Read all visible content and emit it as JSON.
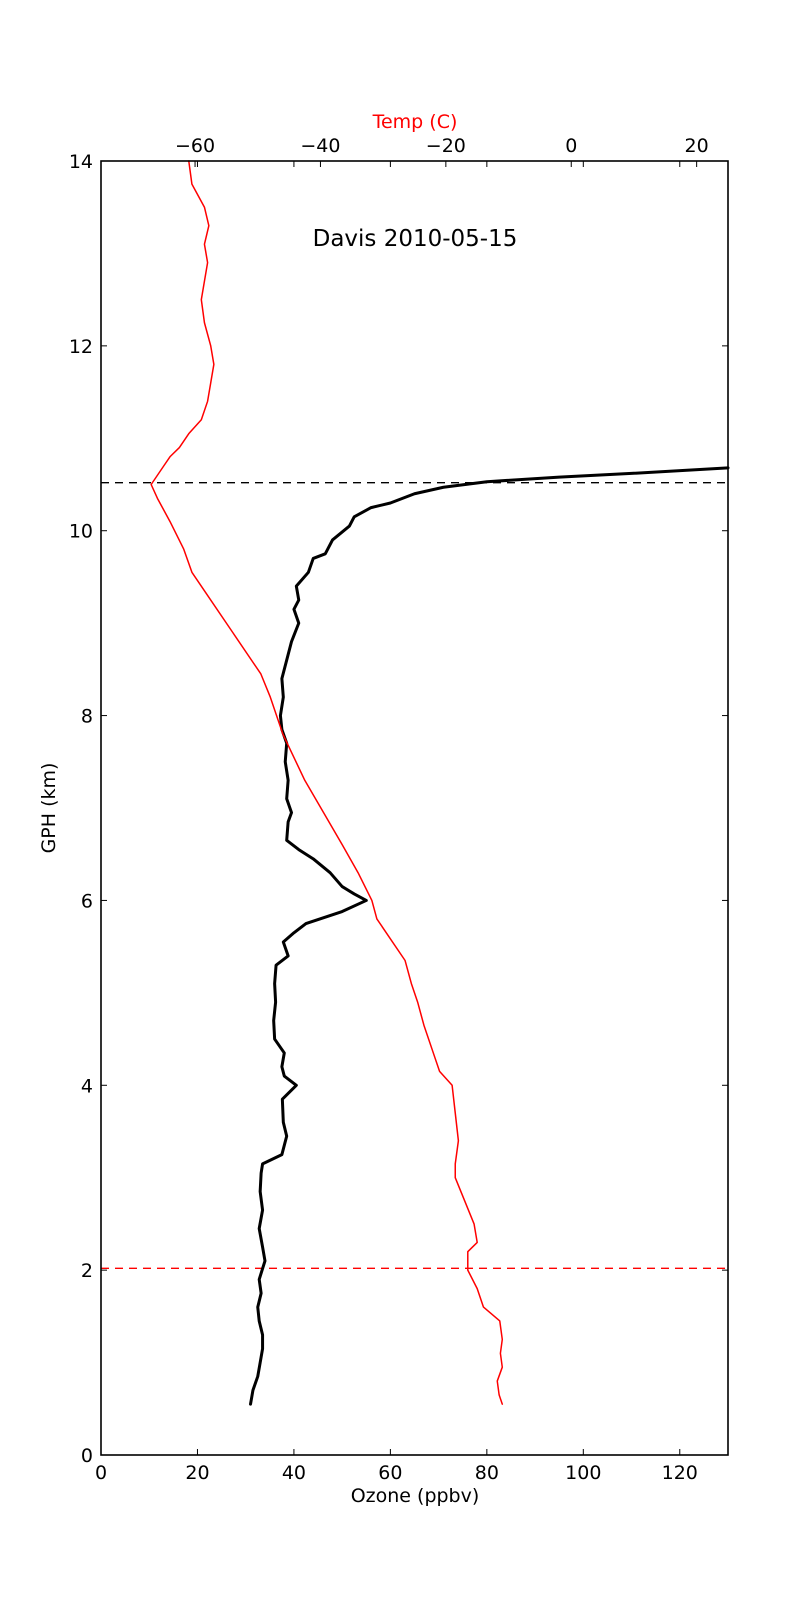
{
  "chart_data": {
    "type": "line",
    "title": "Davis 2010-05-15",
    "xlabel": "Ozone (ppbv)",
    "ylabel": "GPH (km)",
    "x2label": "Temp (C)",
    "xlim": [
      0,
      130
    ],
    "ylim": [
      0,
      14
    ],
    "x2lim": [
      -75,
      25
    ],
    "xticks": [
      "0",
      "20",
      "40",
      "60",
      "80",
      "100",
      "120"
    ],
    "yticks": [
      "0",
      "2",
      "4",
      "6",
      "8",
      "10",
      "12",
      "14"
    ],
    "x2ticks": [
      "−60",
      "−40",
      "−20",
      "0",
      "20"
    ],
    "colors": {
      "ozone": "#000000",
      "temperature": "#ff0000",
      "tropopause": "#000000",
      "boundary_layer": "#ff0000"
    },
    "series": [
      {
        "name": "",
        "axis": "bottom",
        "points": [
          [
            31.0,
            0.55
          ],
          [
            31.5,
            0.7
          ],
          [
            32.5,
            0.85
          ],
          [
            33.0,
            1.0
          ],
          [
            33.5,
            1.15
          ],
          [
            33.5,
            1.3
          ],
          [
            32.8,
            1.45
          ],
          [
            32.5,
            1.6
          ],
          [
            33.2,
            1.75
          ],
          [
            32.8,
            1.9
          ],
          [
            34.0,
            2.1
          ],
          [
            33.5,
            2.25
          ],
          [
            32.8,
            2.45
          ],
          [
            33.5,
            2.65
          ],
          [
            33.0,
            2.85
          ],
          [
            33.2,
            3.05
          ],
          [
            33.5,
            3.15
          ],
          [
            37.5,
            3.25
          ],
          [
            38.5,
            3.45
          ],
          [
            37.8,
            3.6
          ],
          [
            37.6,
            3.85
          ],
          [
            40.5,
            4.0
          ],
          [
            38.0,
            4.1
          ],
          [
            37.5,
            4.2
          ],
          [
            38.0,
            4.35
          ],
          [
            36.0,
            4.5
          ],
          [
            35.8,
            4.7
          ],
          [
            36.2,
            4.9
          ],
          [
            36.0,
            5.1
          ],
          [
            36.3,
            5.3
          ],
          [
            38.8,
            5.4
          ],
          [
            37.8,
            5.55
          ],
          [
            40.0,
            5.65
          ],
          [
            42.5,
            5.75
          ],
          [
            50.0,
            5.88
          ],
          [
            55.0,
            6.0
          ],
          [
            52.5,
            6.07
          ],
          [
            50.0,
            6.15
          ],
          [
            47.5,
            6.3
          ],
          [
            44.0,
            6.45
          ],
          [
            41.0,
            6.55
          ],
          [
            38.5,
            6.65
          ],
          [
            38.8,
            6.85
          ],
          [
            39.5,
            6.95
          ],
          [
            38.5,
            7.1
          ],
          [
            38.8,
            7.3
          ],
          [
            38.2,
            7.5
          ],
          [
            38.5,
            7.7
          ],
          [
            37.5,
            7.85
          ],
          [
            37.2,
            8.0
          ],
          [
            37.8,
            8.2
          ],
          [
            37.5,
            8.4
          ],
          [
            38.5,
            8.6
          ],
          [
            39.5,
            8.8
          ],
          [
            41.0,
            9.0
          ],
          [
            40.0,
            9.15
          ],
          [
            41.0,
            9.25
          ],
          [
            40.5,
            9.4
          ],
          [
            43.0,
            9.55
          ],
          [
            44.0,
            9.7
          ],
          [
            46.5,
            9.75
          ],
          [
            48.0,
            9.9
          ],
          [
            51.5,
            10.05
          ],
          [
            52.5,
            10.15
          ],
          [
            56.0,
            10.25
          ],
          [
            60.0,
            10.3
          ],
          [
            65.0,
            10.4
          ],
          [
            71.0,
            10.47
          ],
          [
            80.0,
            10.53
          ],
          [
            95.0,
            10.58
          ],
          [
            110.0,
            10.62
          ],
          [
            130.0,
            10.68
          ]
        ]
      },
      {
        "name": "",
        "axis": "top",
        "points": [
          [
            -11.0,
            0.55
          ],
          [
            -11.5,
            0.65
          ],
          [
            -11.8,
            0.8
          ],
          [
            -11.0,
            0.95
          ],
          [
            -11.3,
            1.1
          ],
          [
            -11.0,
            1.25
          ],
          [
            -11.4,
            1.45
          ],
          [
            -14.0,
            1.6
          ],
          [
            -15.0,
            1.8
          ],
          [
            -16.5,
            2.0
          ],
          [
            -16.5,
            2.2
          ],
          [
            -15.0,
            2.3
          ],
          [
            -15.5,
            2.5
          ],
          [
            -17.0,
            2.75
          ],
          [
            -18.5,
            3.0
          ],
          [
            -18.5,
            3.15
          ],
          [
            -18.0,
            3.4
          ],
          [
            -18.5,
            3.7
          ],
          [
            -19.0,
            4.0
          ],
          [
            -21.0,
            4.15
          ],
          [
            -22.0,
            4.35
          ],
          [
            -23.5,
            4.65
          ],
          [
            -24.5,
            4.9
          ],
          [
            -25.5,
            5.1
          ],
          [
            -26.5,
            5.35
          ],
          [
            -29.0,
            5.6
          ],
          [
            -31.0,
            5.8
          ],
          [
            -31.8,
            6.0
          ],
          [
            -34.0,
            6.3
          ],
          [
            -36.5,
            6.6
          ],
          [
            -39.5,
            6.95
          ],
          [
            -42.5,
            7.3
          ],
          [
            -46.0,
            7.8
          ],
          [
            -48.0,
            8.2
          ],
          [
            -49.5,
            8.45
          ],
          [
            -54.0,
            8.9
          ],
          [
            -58.0,
            9.3
          ],
          [
            -60.5,
            9.55
          ],
          [
            -61.8,
            9.8
          ],
          [
            -64.0,
            10.1
          ],
          [
            -66.0,
            10.35
          ],
          [
            -67.0,
            10.5
          ],
          [
            -66.0,
            10.6
          ],
          [
            -65.0,
            10.7
          ],
          [
            -64.0,
            10.8
          ],
          [
            -62.5,
            10.9
          ],
          [
            -61.0,
            11.05
          ],
          [
            -59.0,
            11.2
          ],
          [
            -58.0,
            11.4
          ],
          [
            -57.5,
            11.6
          ],
          [
            -57.0,
            11.8
          ],
          [
            -57.5,
            12.0
          ],
          [
            -58.5,
            12.25
          ],
          [
            -59.0,
            12.5
          ],
          [
            -58.5,
            12.7
          ],
          [
            -58.0,
            12.9
          ],
          [
            -58.5,
            13.1
          ],
          [
            -57.8,
            13.3
          ],
          [
            -58.5,
            13.5
          ],
          [
            -60.5,
            13.75
          ],
          [
            -61.0,
            14.0
          ]
        ]
      }
    ],
    "reference_lines": [
      {
        "axis": "y",
        "value": 10.52,
        "style": "dashed",
        "color": "#000000"
      },
      {
        "axis": "y",
        "value": 2.02,
        "style": "dashed",
        "color": "#ff0000"
      }
    ]
  }
}
